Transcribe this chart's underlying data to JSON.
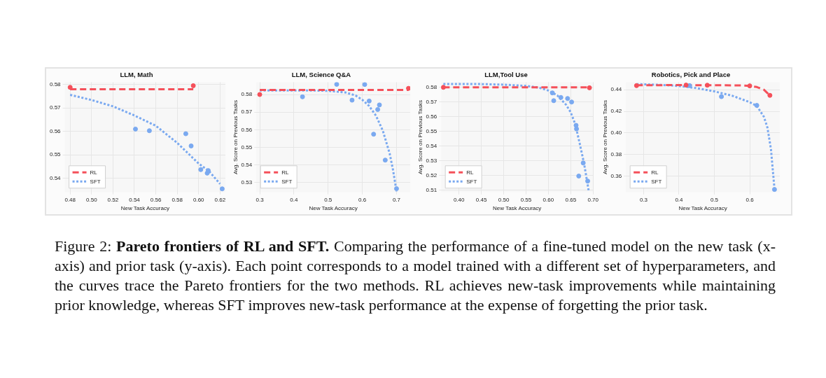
{
  "chart_data": [
    {
      "type": "scatter",
      "title": "LLM, Math",
      "xlabel": "New Task Accuracy",
      "xlim": [
        0.475,
        0.625
      ],
      "xticks": [
        0.48,
        {
          "value": 0.5,
          "label": "0.50"
        },
        0.52,
        0.54,
        0.56,
        0.58,
        {
          "value": 0.6,
          "label": "0.60"
        },
        0.62
      ],
      "ylim": [
        0.534,
        0.581
      ],
      "yticks": [
        0.54,
        0.55,
        0.56,
        0.57,
        0.58
      ],
      "grid": true,
      "legend": "bottom left",
      "series": [
        {
          "name": "RL",
          "type": "line",
          "line_style": "dashed",
          "marker": "none",
          "color": "#f5505a",
          "x": [
            0.48,
            0.595
          ],
          "values": [
            0.578,
            0.578
          ]
        },
        {
          "name": "SFT",
          "type": "line",
          "line_style": "dotted",
          "marker": "none",
          "color": "#7aa9f0",
          "x": [
            0.48,
            0.5,
            0.52,
            0.54,
            0.56,
            0.58,
            0.6,
            0.61,
            0.62
          ],
          "values": [
            0.5756,
            0.5734,
            0.5707,
            0.5668,
            0.5624,
            0.5551,
            0.5463,
            0.5429,
            0.5376
          ]
        },
        {
          "type": "scatter",
          "marker": "circle",
          "color": "#f5505a",
          "x": [
            0.48,
            0.595
          ],
          "values": [
            0.5788,
            0.5795
          ]
        },
        {
          "type": "scatter",
          "marker": "circle",
          "color": "#7aa9f0",
          "x": [
            0.541,
            0.554,
            0.588,
            0.593,
            0.602,
            0.608,
            0.609,
            0.622
          ],
          "values": [
            0.561,
            0.5603,
            0.559,
            0.5538,
            0.5437,
            0.5422,
            0.5433,
            0.5355
          ]
        }
      ]
    },
    {
      "type": "scatter",
      "title": "LLM, Science Q&A",
      "xlabel": "New Task Accuracy",
      "ylabel": "Avg. Score on Previous Tasks",
      "xlim": [
        0.29,
        0.74
      ],
      "xticks": [
        0.3,
        0.4,
        0.5,
        0.6,
        0.7
      ],
      "ylim": [
        0.5245,
        0.587
      ],
      "yticks": [
        0.53,
        0.54,
        0.55,
        0.56,
        0.57,
        0.58
      ],
      "grid": true,
      "legend": "bottom left",
      "series": [
        {
          "name": "RL",
          "type": "line",
          "line_style": "dashed",
          "marker": "none",
          "color": "#f5505a",
          "x": [
            0.3,
            0.735
          ],
          "values": [
            0.5826,
            0.5826
          ]
        },
        {
          "name": "SFT",
          "type": "line",
          "line_style": "dotted",
          "marker": "none",
          "color": "#7aa9f0",
          "x": [
            0.3,
            0.45,
            0.5,
            0.55,
            0.58,
            0.6,
            0.62,
            0.64,
            0.66,
            0.68,
            0.69,
            0.7
          ],
          "values": [
            0.5823,
            0.5823,
            0.5821,
            0.5812,
            0.5795,
            0.577,
            0.5735,
            0.568,
            0.5595,
            0.5465,
            0.537,
            0.525
          ]
        },
        {
          "type": "scatter",
          "marker": "circle",
          "color": "#f5505a",
          "x": [
            0.3,
            0.735
          ],
          "values": [
            0.58,
            0.5835
          ]
        },
        {
          "type": "scatter",
          "marker": "circle",
          "color": "#7aa9f0",
          "x": [
            0.425,
            0.525,
            0.57,
            0.607,
            0.62,
            0.633,
            0.645,
            0.65,
            0.667,
            0.7
          ],
          "values": [
            0.5787,
            0.5858,
            0.5768,
            0.5857,
            0.5763,
            0.5575,
            0.5715,
            0.5741,
            0.5428,
            0.5266
          ]
        }
      ]
    },
    {
      "type": "scatter",
      "title": "LLM,Tool Use",
      "xlabel": "New Task Accuracy",
      "ylabel": "Avg. Score on Previous Tasks",
      "xlim": [
        0.36,
        0.7
      ],
      "xticks": [
        {
          "value": 0.4,
          "label": "0.40"
        },
        0.45,
        {
          "value": 0.5,
          "label": "0.50"
        },
        0.55,
        {
          "value": 0.6,
          "label": "0.60"
        },
        0.65,
        {
          "value": 0.7,
          "label": "0.70"
        }
      ],
      "ylim": [
        0.5085,
        0.5835
      ],
      "yticks": [
        0.51,
        0.52,
        0.53,
        0.54,
        0.55,
        0.56,
        0.57,
        0.58
      ],
      "grid": true,
      "legend": "bottom left",
      "series": [
        {
          "name": "RL",
          "type": "line",
          "line_style": "dashed",
          "marker": "none",
          "color": "#f5505a",
          "x": [
            0.365,
            0.69
          ],
          "values": [
            0.58,
            0.58
          ]
        },
        {
          "name": "SFT",
          "type": "line",
          "line_style": "dotted",
          "marker": "none",
          "color": "#7aa9f0",
          "x": [
            0.365,
            0.45,
            0.5,
            0.55,
            0.58,
            0.6,
            0.62,
            0.64,
            0.65,
            0.66,
            0.67,
            0.68,
            0.69
          ],
          "values": [
            0.5823,
            0.5822,
            0.5818,
            0.581,
            0.5797,
            0.5778,
            0.5745,
            0.568,
            0.563,
            0.555,
            0.542,
            0.528,
            0.51
          ]
        },
        {
          "type": "scatter",
          "marker": "circle",
          "color": "#f5505a",
          "x": [
            0.365,
            0.692
          ],
          "values": [
            0.58,
            0.5797
          ]
        },
        {
          "type": "scatter",
          "marker": "circle",
          "color": "#7aa9f0",
          "x": [
            0.609,
            0.612,
            0.628,
            0.643,
            0.652,
            0.662,
            0.663,
            0.668,
            0.678,
            0.688
          ],
          "values": [
            0.5762,
            0.5709,
            0.5731,
            0.5724,
            0.57,
            0.5541,
            0.5517,
            0.5196,
            0.5285,
            0.5162
          ]
        }
      ]
    },
    {
      "type": "scatter",
      "title": "Robotics, Pick and Place",
      "xlabel": "New Task Accuracy",
      "ylabel": "Avg. Score on Previous Tasks",
      "xlim": [
        0.25,
        0.685
      ],
      "xticks": [
        0.3,
        0.4,
        0.5,
        0.6
      ],
      "ylim": [
        0.345,
        0.447
      ],
      "yticks": [
        0.36,
        0.38,
        {
          "value": 0.4,
          "label": "0.40"
        },
        0.42,
        0.44
      ],
      "grid": true,
      "legend": "bottom left",
      "series": [
        {
          "name": "RL",
          "type": "line",
          "line_style": "dashed",
          "marker": "none",
          "color": "#f5505a",
          "x": [
            0.28,
            0.4,
            0.5,
            0.58,
            0.6,
            0.62,
            0.64,
            0.657
          ],
          "values": [
            0.4442,
            0.4443,
            0.4442,
            0.444,
            0.4436,
            0.4425,
            0.44,
            0.4348
          ]
        },
        {
          "name": "SFT",
          "type": "line",
          "line_style": "dotted",
          "marker": "none",
          "color": "#7aa9f0",
          "x": [
            0.28,
            0.35,
            0.4,
            0.45,
            0.5,
            0.55,
            0.6,
            0.62,
            0.64,
            0.65,
            0.66,
            0.67
          ],
          "values": [
            0.4452,
            0.4445,
            0.4435,
            0.4415,
            0.4385,
            0.4345,
            0.4285,
            0.425,
            0.415,
            0.405,
            0.385,
            0.348
          ]
        },
        {
          "type": "scatter",
          "marker": "circle",
          "color": "#f5505a",
          "x": [
            0.28,
            0.42,
            0.48,
            0.6,
            0.657
          ],
          "values": [
            0.4438,
            0.4443,
            0.4442,
            0.4436,
            0.4348
          ]
        },
        {
          "type": "scatter",
          "marker": "circle",
          "color": "#7aa9f0",
          "x": [
            0.43,
            0.52,
            0.62,
            0.67
          ],
          "values": [
            0.4438,
            0.4336,
            0.4255,
            0.3477
          ]
        }
      ]
    },
    {
      "type": "other",
      "annotations": [
        "Figure 2:",
        "Pareto frontiers of RL and SFT.",
        "Comparing the performance of a fine-tuned model on the new task (x-axis) and prior task (y-axis).  Each point corresponds to a model trained with a different set of hyperparameters, and the curves trace the Pareto frontiers for the two methods. RL achieves new-task improvements while maintaining prior knowledge, whereas SFT improves new-task performance at the expense of forgetting the prior task."
      ]
    }
  ]
}
